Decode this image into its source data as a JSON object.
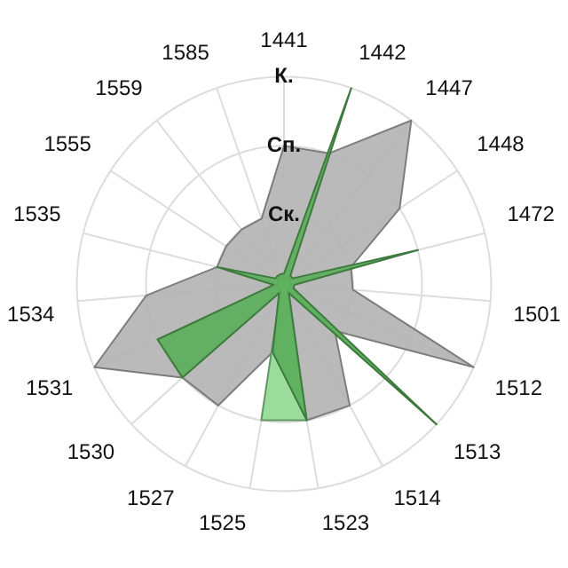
{
  "chart_data": {
    "type": "radar",
    "categories": [
      "1441",
      "1442",
      "1447",
      "1448",
      "1472",
      "1501",
      "1512",
      "1513",
      "1514",
      "1523",
      "1525",
      "1527",
      "1530",
      "1531",
      "1534",
      "1535",
      "1555",
      "1559",
      "1585"
    ],
    "series": [
      {
        "color": "#b3b3b3",
        "values": [
          2,
          2,
          3,
          2,
          1,
          1,
          3,
          1,
          2,
          2,
          1,
          2,
          2,
          3,
          2,
          1,
          1,
          1,
          1
        ]
      },
      {
        "color": "#90d890",
        "values": [
          0.1,
          0.1,
          0.1,
          0.1,
          0.1,
          0.1,
          0.1,
          3,
          0.1,
          2,
          2,
          0.1,
          0.1,
          0.1,
          0.1,
          0.1,
          0.1,
          0.1,
          0.1
        ]
      },
      {
        "color": "#5aae5a",
        "values": [
          0.15,
          3,
          0.15,
          0.15,
          2,
          0.15,
          0.15,
          3,
          0.15,
          2,
          1,
          0.15,
          2,
          2,
          0.15,
          1,
          0.15,
          0.15,
          0.15
        ]
      }
    ],
    "ylim": [
      0,
      3
    ],
    "yticks": [
      {
        "value": 1,
        "label": "Ск."
      },
      {
        "value": 2,
        "label": "Сп."
      },
      {
        "value": 3,
        "label": "К."
      }
    ],
    "grid": true,
    "legend": false,
    "marker": "none"
  }
}
